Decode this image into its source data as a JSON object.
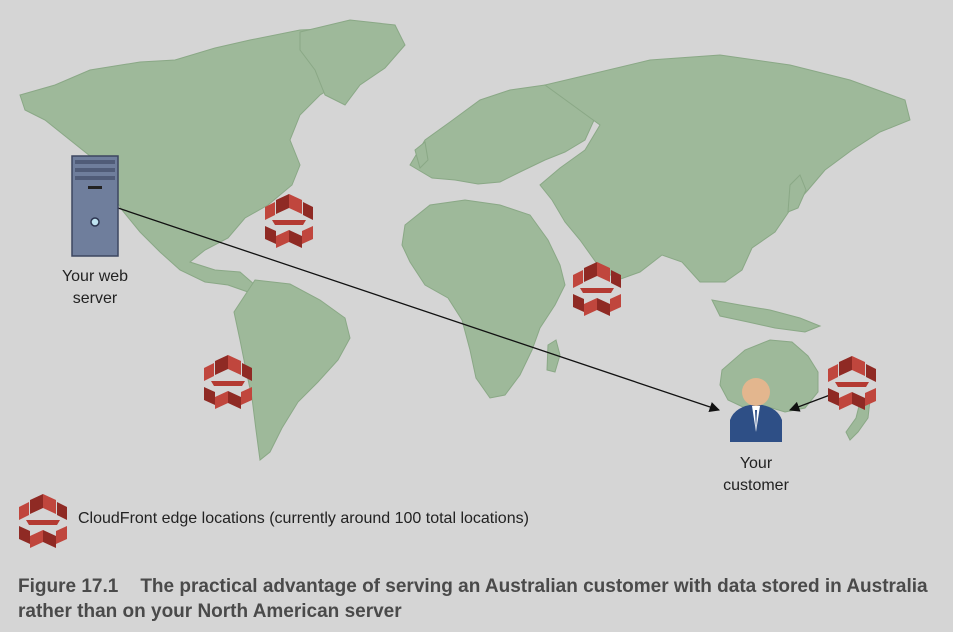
{
  "labels": {
    "server_line1": "Your web",
    "server_line2": "server",
    "customer_line1": "Your",
    "customer_line2": "customer"
  },
  "legend": {
    "text": "CloudFront edge locations (currently around 100 total locations)"
  },
  "caption": {
    "number": "Figure 17.1",
    "text": "The practical advantage of serving an Australian customer with data stored in Australia rather than on your North American server"
  },
  "colors": {
    "land": "#9eb99a",
    "edge_icon": "#b43a32",
    "server": "#6f7e9c",
    "person_body": "#2e4f86",
    "person_head": "#e3b68e"
  }
}
